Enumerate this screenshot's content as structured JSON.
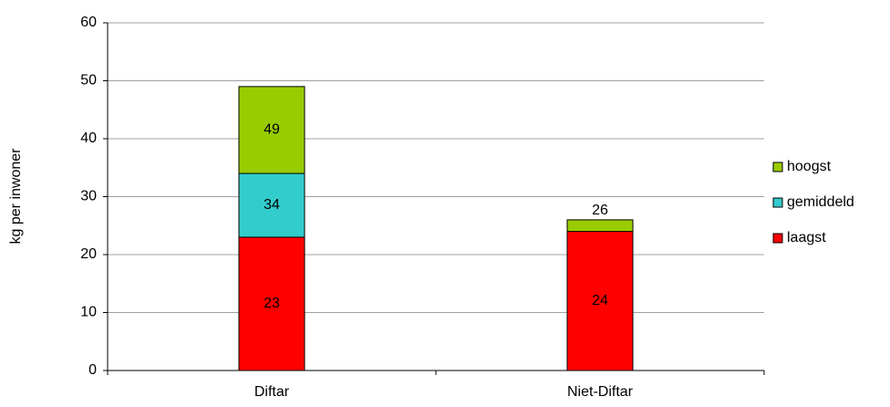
{
  "chart_data": {
    "type": "bar",
    "overlap": true,
    "y_label": "kg per inwoner",
    "categories": [
      "Diftar",
      "Niet-Diftar"
    ],
    "series": [
      {
        "name": "laagst",
        "color": "#ff0000",
        "values": [
          23,
          24
        ]
      },
      {
        "name": "gemiddeld",
        "color": "#33cccc",
        "values": [
          34,
          null
        ]
      },
      {
        "name": "hoogst",
        "color": "#99cc00",
        "values": [
          49,
          26
        ]
      }
    ],
    "ylim": [
      0,
      60
    ],
    "yticks": [
      0,
      10,
      20,
      30,
      40,
      50,
      60
    ],
    "grid": true,
    "legend": "right"
  }
}
